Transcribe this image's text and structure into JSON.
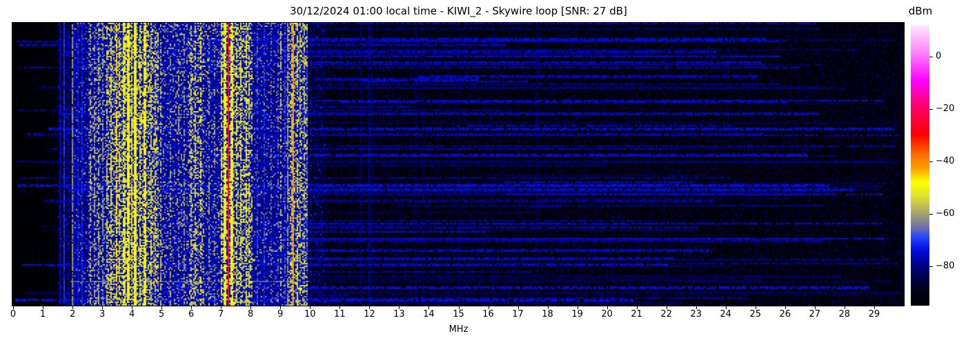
{
  "title": "30/12/2024 01:00 local time - KIWI_2 - Skywire loop [SNR: 27 dB]",
  "x_axis": {
    "label": "MHz",
    "range": [
      0,
      30
    ],
    "tick_labels": [
      "0",
      "1",
      "2",
      "3",
      "4",
      "5",
      "6",
      "7",
      "8",
      "9",
      "10",
      "11",
      "12",
      "13",
      "14",
      "15",
      "16",
      "17",
      "18",
      "19",
      "20",
      "21",
      "22",
      "23",
      "24",
      "25",
      "26",
      "27",
      "28",
      "29"
    ]
  },
  "colorbar": {
    "label": "dBm",
    "vmin": -95,
    "vmax": 12,
    "ticks": [
      {
        "label": "0",
        "value": 0
      },
      {
        "label": "−20",
        "value": -20
      },
      {
        "label": "−40",
        "value": -40
      },
      {
        "label": "−60",
        "value": -60
      },
      {
        "label": "−80",
        "value": -80
      }
    ],
    "stops": [
      [
        0.0,
        "#000000"
      ],
      [
        0.07,
        "#000024"
      ],
      [
        0.14,
        "#000080"
      ],
      [
        0.2,
        "#0010e0"
      ],
      [
        0.24,
        "#2040ff"
      ],
      [
        0.28,
        "#7070a8"
      ],
      [
        0.34,
        "#b0b060"
      ],
      [
        0.39,
        "#e0e030"
      ],
      [
        0.44,
        "#ffff00"
      ],
      [
        0.49,
        "#ffa000"
      ],
      [
        0.54,
        "#ff6a00"
      ],
      [
        0.61,
        "#ff0000"
      ],
      [
        0.67,
        "#ff0040"
      ],
      [
        0.72,
        "#ff0078"
      ],
      [
        0.8,
        "#ff00ff"
      ],
      [
        0.9,
        "#ff80ff"
      ],
      [
        1.0,
        "#ffeaff"
      ]
    ]
  },
  "chart_data": {
    "type": "heatmap",
    "subtype": "radio-spectrum-waterfall",
    "title": "30/12/2024 01:00 local time - KIWI_2 - Skywire loop [SNR: 27 dB]",
    "x_range_mhz": [
      0,
      30
    ],
    "y_axis": "time (capture rows, top to bottom)",
    "value_unit": "dBm",
    "value_range": [
      -95,
      12
    ],
    "seed": 20241230,
    "noise_bands": [
      {
        "f0": 0.0,
        "f1": 1.55,
        "floor": -94,
        "jitter": 3,
        "p": 0.03,
        "lo": -89,
        "hi": -83
      },
      {
        "f0": 1.55,
        "f1": 2.1,
        "floor": -88,
        "jitter": 7,
        "p": 0.1,
        "lo": -80,
        "hi": -72
      },
      {
        "f0": 2.1,
        "f1": 2.55,
        "floor": -80,
        "jitter": 11,
        "p": 0.08,
        "lo": -68,
        "hi": -58
      },
      {
        "f0": 2.55,
        "f1": 3.2,
        "floor": -78,
        "jitter": 12,
        "p": 0.2,
        "lo": -64,
        "hi": -52
      },
      {
        "f0": 3.2,
        "f1": 4.9,
        "floor": -77,
        "jitter": 12,
        "p": 0.4,
        "lo": -62,
        "hi": -46
      },
      {
        "f0": 4.9,
        "f1": 5.95,
        "floor": -78,
        "jitter": 12,
        "p": 0.16,
        "lo": -64,
        "hi": -53
      },
      {
        "f0": 5.95,
        "f1": 6.45,
        "floor": -77,
        "jitter": 12,
        "p": 0.3,
        "lo": -62,
        "hi": -50
      },
      {
        "f0": 6.45,
        "f1": 7.0,
        "floor": -78,
        "jitter": 12,
        "p": 0.15,
        "lo": -64,
        "hi": -54
      },
      {
        "f0": 7.0,
        "f1": 8.1,
        "floor": -77,
        "jitter": 12,
        "p": 0.38,
        "lo": -60,
        "hi": -46
      },
      {
        "f0": 8.1,
        "f1": 9.3,
        "floor": -79,
        "jitter": 11,
        "p": 0.1,
        "lo": -66,
        "hi": -56
      },
      {
        "f0": 9.3,
        "f1": 9.95,
        "floor": -77,
        "jitter": 12,
        "p": 0.3,
        "lo": -60,
        "hi": -47
      },
      {
        "f0": 9.95,
        "f1": 10.55,
        "floor": -87,
        "jitter": 6,
        "p": 0.06,
        "lo": -78,
        "hi": -70
      },
      {
        "f0": 10.55,
        "f1": 30.0,
        "floor": -93,
        "jitter": 3,
        "p": 0.3,
        "lo": -90,
        "hi": -82
      }
    ],
    "carriers": [
      {
        "f": 1.62,
        "w": 1,
        "lv": -76,
        "duty": 0.95
      },
      {
        "f": 1.75,
        "w": 1,
        "lv": -71,
        "duty": 0.9
      },
      {
        "f": 1.88,
        "w": 1,
        "lv": -77,
        "duty": 0.9
      },
      {
        "f": 2.02,
        "w": 1,
        "lv": -62,
        "duty": 0.85
      },
      {
        "f": 2.08,
        "w": 1,
        "lv": -74,
        "duty": 0.9
      },
      {
        "f": 2.22,
        "w": 1,
        "lv": -73,
        "duty": 0.9
      },
      {
        "f": 2.34,
        "w": 1,
        "lv": -72,
        "duty": 0.85
      },
      {
        "f": 2.62,
        "w": 1,
        "lv": -58,
        "duty": 0.5
      },
      {
        "f": 2.75,
        "w": 1,
        "lv": -60,
        "duty": 0.45
      },
      {
        "f": 2.9,
        "w": 1,
        "lv": -57,
        "duty": 0.5
      },
      {
        "f": 3.05,
        "w": 1,
        "lv": -62,
        "duty": 0.6
      },
      {
        "f": 3.2,
        "w": 1,
        "lv": -55,
        "duty": 0.55
      },
      {
        "f": 3.33,
        "w": 1,
        "lv": -53,
        "duty": 0.6
      },
      {
        "f": 3.49,
        "w": 1,
        "lv": -46,
        "duty": 0.75
      },
      {
        "f": 3.62,
        "w": 1,
        "lv": -54,
        "duty": 0.6
      },
      {
        "f": 3.75,
        "w": 2,
        "lv": -51,
        "duty": 0.7
      },
      {
        "f": 3.9,
        "w": 2,
        "lv": -49,
        "duty": 0.85
      },
      {
        "f": 4.02,
        "w": 1,
        "lv": -53,
        "duty": 0.6
      },
      {
        "f": 4.13,
        "w": 2,
        "lv": -49,
        "duty": 0.92
      },
      {
        "f": 4.3,
        "w": 1,
        "lv": -52,
        "duty": 0.65
      },
      {
        "f": 4.47,
        "w": 2,
        "lv": -49,
        "duty": 0.8
      },
      {
        "f": 4.65,
        "w": 1,
        "lv": -55,
        "duty": 0.5
      },
      {
        "f": 4.8,
        "w": 1,
        "lv": -57,
        "duty": 0.45
      },
      {
        "f": 5.0,
        "w": 1,
        "lv": -57,
        "duty": 0.5
      },
      {
        "f": 5.3,
        "w": 1,
        "lv": -60,
        "duty": 0.4
      },
      {
        "f": 5.6,
        "w": 1,
        "lv": -61,
        "duty": 0.35
      },
      {
        "f": 5.8,
        "w": 1,
        "lv": -60,
        "duty": 0.4
      },
      {
        "f": 6.0,
        "w": 1,
        "lv": -55,
        "duty": 0.55
      },
      {
        "f": 6.17,
        "w": 1,
        "lv": -54,
        "duty": 0.55
      },
      {
        "f": 6.32,
        "w": 1,
        "lv": -50,
        "duty": 0.5
      },
      {
        "f": 6.6,
        "w": 1,
        "lv": -60,
        "duty": 0.35
      },
      {
        "f": 6.8,
        "w": 1,
        "lv": -61,
        "duty": 0.3
      },
      {
        "f": 7.05,
        "w": 1,
        "lv": -55,
        "duty": 0.55
      },
      {
        "f": 7.17,
        "w": 2,
        "lv": -49,
        "duty": 0.85
      },
      {
        "f": 7.28,
        "w": 1,
        "lv": -23,
        "duty": 1.0
      },
      {
        "f": 7.38,
        "w": 2,
        "lv": -50,
        "duty": 0.8
      },
      {
        "f": 7.55,
        "w": 1,
        "lv": -54,
        "duty": 0.6
      },
      {
        "f": 7.7,
        "w": 1,
        "lv": -52,
        "duty": 0.65
      },
      {
        "f": 7.85,
        "w": 1,
        "lv": -53,
        "duty": 0.6
      },
      {
        "f": 7.98,
        "w": 1,
        "lv": -55,
        "duty": 0.5
      },
      {
        "f": 8.25,
        "w": 1,
        "lv": -68,
        "duty": 0.5
      },
      {
        "f": 8.47,
        "w": 1,
        "lv": -70,
        "duty": 0.6
      },
      {
        "f": 8.7,
        "w": 1,
        "lv": -64,
        "duty": 0.4
      },
      {
        "f": 8.95,
        "w": 1,
        "lv": -66,
        "duty": 0.4
      },
      {
        "f": 9.05,
        "w": 1,
        "lv": -56,
        "duty": 0.5
      },
      {
        "f": 9.15,
        "w": 1,
        "lv": -68,
        "duty": 0.5
      },
      {
        "f": 9.26,
        "w": 1,
        "lv": -61,
        "duty": 0.7
      },
      {
        "f": 9.4,
        "w": 1,
        "lv": -58,
        "duty": 0.6
      },
      {
        "f": 9.47,
        "w": 1,
        "lv": -42,
        "duty": 0.97
      },
      {
        "f": 9.58,
        "w": 1,
        "lv": -55,
        "duty": 0.6
      },
      {
        "f": 9.7,
        "w": 1,
        "lv": -59,
        "duty": 0.55
      },
      {
        "f": 9.82,
        "w": 1,
        "lv": -62,
        "duty": 0.55
      },
      {
        "f": 9.92,
        "w": 1,
        "lv": -70,
        "duty": 0.7
      },
      {
        "f": 11.73,
        "w": 1,
        "lv": -82,
        "duty": 0.9
      },
      {
        "f": 12.0,
        "w": 1,
        "lv": -79,
        "duty": 0.92
      },
      {
        "f": 12.1,
        "w": 1,
        "lv": -83,
        "duty": 0.85
      },
      {
        "f": 13.57,
        "w": 1,
        "lv": -84,
        "duty": 0.85
      },
      {
        "f": 13.8,
        "w": 1,
        "lv": -85,
        "duty": 0.8
      },
      {
        "f": 15.0,
        "w": 1,
        "lv": -86,
        "duty": 0.75
      },
      {
        "f": 16.2,
        "w": 1,
        "lv": -87,
        "duty": 0.7
      },
      {
        "f": 17.68,
        "w": 1,
        "lv": -84,
        "duty": 0.8
      },
      {
        "f": 19.3,
        "w": 1,
        "lv": -87,
        "duty": 0.7
      },
      {
        "f": 21.45,
        "w": 1,
        "lv": -88,
        "duty": 0.6
      },
      {
        "f": 25.0,
        "w": 1,
        "lv": -89,
        "duty": 0.5
      }
    ],
    "h_segments": [
      {
        "y": 0.155,
        "f0": 2.2,
        "f1": 9.9,
        "lv": -73
      },
      {
        "y": 0.315,
        "f0": 3.35,
        "f1": 4.55,
        "lv": -60
      },
      {
        "y": 0.835,
        "f0": 3.05,
        "f1": 4.45,
        "lv": -57
      },
      {
        "y": 0.91,
        "f0": 1.95,
        "f1": 9.95,
        "lv": -67
      }
    ],
    "streaks": {
      "count": 95,
      "lv_lo": -84,
      "lv_hi": -74,
      "gap": 0.22
    }
  }
}
